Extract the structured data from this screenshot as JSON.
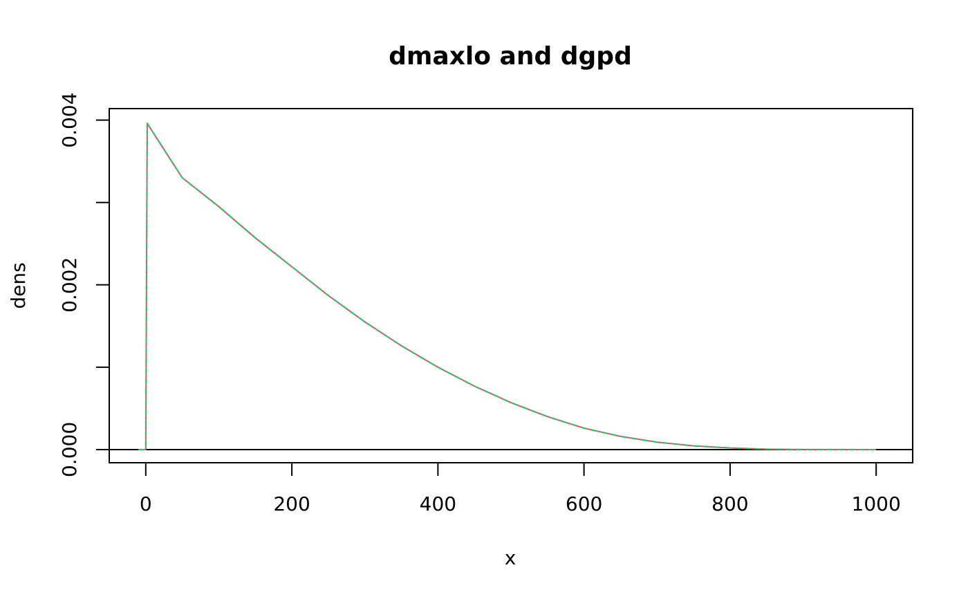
{
  "chart_data": {
    "type": "line",
    "title": "dmaxlo and dgpd",
    "xlabel": "x",
    "ylabel": "dens",
    "xlim": [
      -50,
      1050
    ],
    "ylim": [
      -0.00016,
      0.00414
    ],
    "x_ticks": [
      0,
      200,
      400,
      600,
      800,
      1000
    ],
    "x_tick_labels": [
      "0",
      "200",
      "400",
      "600",
      "800",
      "1000"
    ],
    "y_ticks": [
      0,
      0.001,
      0.002,
      0.003,
      0.004
    ],
    "y_tick_labels": [
      "0.000",
      "",
      "0.002",
      "",
      "0.004"
    ],
    "grid": false,
    "legend": "none",
    "hline": {
      "y": 0,
      "color": "#000000"
    },
    "series": [
      {
        "color": "#DF536B",
        "dash": "solid",
        "points": [
          [
            -10,
            0
          ],
          [
            0,
            0
          ],
          [
            2,
            0.00396
          ],
          [
            50,
            0.0033
          ],
          [
            100,
            0.00295
          ],
          [
            150,
            0.00257
          ],
          [
            200,
            0.00222
          ],
          [
            250,
            0.00187
          ],
          [
            300,
            0.00155
          ],
          [
            350,
            0.00126
          ],
          [
            400,
            0.001
          ],
          [
            450,
            0.00077
          ],
          [
            500,
            0.00057
          ],
          [
            550,
            0.0004
          ],
          [
            600,
            0.00026
          ],
          [
            650,
            0.00016
          ],
          [
            700,
            9e-05
          ],
          [
            750,
            4.5e-05
          ],
          [
            800,
            2e-05
          ],
          [
            850,
            5e-06
          ],
          [
            900,
            5e-07
          ],
          [
            1000,
            0
          ]
        ]
      },
      {
        "color": "#22C55E",
        "dash": "dashed",
        "points": [
          [
            -10,
            0
          ],
          [
            0,
            0
          ],
          [
            2,
            0.00396
          ],
          [
            50,
            0.0033
          ],
          [
            100,
            0.00295
          ],
          [
            150,
            0.00257
          ],
          [
            200,
            0.00222
          ],
          [
            250,
            0.00187
          ],
          [
            300,
            0.00155
          ],
          [
            350,
            0.00126
          ],
          [
            400,
            0.001
          ],
          [
            450,
            0.00077
          ],
          [
            500,
            0.00057
          ],
          [
            550,
            0.0004
          ],
          [
            600,
            0.00026
          ],
          [
            650,
            0.00016
          ],
          [
            700,
            9e-05
          ],
          [
            750,
            4.5e-05
          ],
          [
            800,
            2e-05
          ],
          [
            850,
            5e-06
          ],
          [
            900,
            5e-07
          ],
          [
            1000,
            0
          ]
        ]
      }
    ]
  }
}
